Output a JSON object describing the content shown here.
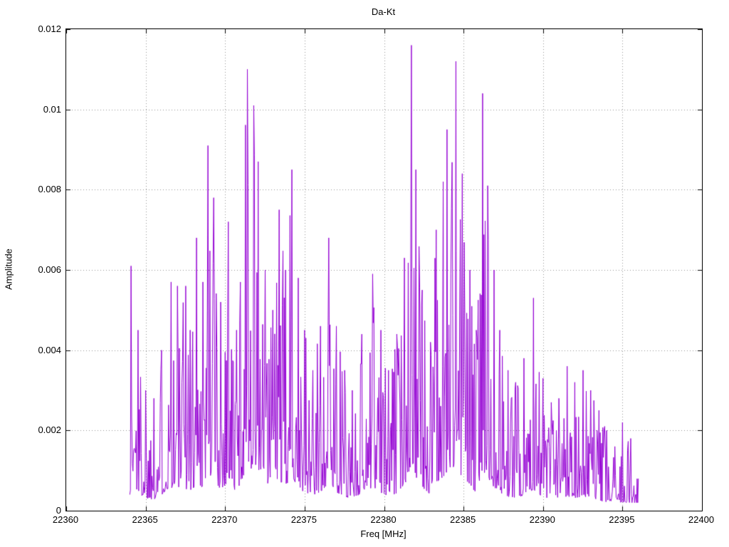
{
  "chart_data": {
    "type": "line",
    "title": "Da-Kt",
    "xlabel": "Freq [MHz]",
    "ylabel": "Amplitude",
    "xlim": [
      22360,
      22400
    ],
    "ylim": [
      0,
      0.012
    ],
    "grid": true,
    "legend": "none",
    "series_color": "#9400d3",
    "grid_color": "#909090",
    "xticks": [
      {
        "v": 22360,
        "label": "22360"
      },
      {
        "v": 22365,
        "label": "22365"
      },
      {
        "v": 22370,
        "label": "22370"
      },
      {
        "v": 22375,
        "label": "22375"
      },
      {
        "v": 22380,
        "label": "22380"
      },
      {
        "v": 22385,
        "label": "22385"
      },
      {
        "v": 22390,
        "label": "22390"
      },
      {
        "v": 22395,
        "label": "22395"
      },
      {
        "v": 22400,
        "label": "22400"
      }
    ],
    "yticks": [
      {
        "v": 0,
        "label": "0"
      },
      {
        "v": 0.002,
        "label": "0.002"
      },
      {
        "v": 0.004,
        "label": "0.004"
      },
      {
        "v": 0.006,
        "label": "0.006"
      },
      {
        "v": 0.008,
        "label": "0.008"
      },
      {
        "v": 0.01,
        "label": "0.01"
      },
      {
        "v": 0.012,
        "label": "0.012"
      }
    ],
    "x_start": 22364.0,
    "x_end": 22396.0,
    "points_per_mhz": 25,
    "noise_seed": 1337,
    "noise_floor": 0.0002,
    "envelope": [
      [
        22363.9,
        0.001
      ],
      [
        22364.1,
        0.0061
      ],
      [
        22364.5,
        0.0045
      ],
      [
        22365.0,
        0.003
      ],
      [
        22365.5,
        0.0028
      ],
      [
        22366.0,
        0.004
      ],
      [
        22366.6,
        0.0057
      ],
      [
        22367.0,
        0.0056
      ],
      [
        22367.5,
        0.0056
      ],
      [
        22367.8,
        0.0045
      ],
      [
        22368.2,
        0.0068
      ],
      [
        22368.6,
        0.0057
      ],
      [
        22368.9,
        0.0091
      ],
      [
        22369.3,
        0.0078
      ],
      [
        22369.7,
        0.0052
      ],
      [
        22370.2,
        0.0072
      ],
      [
        22370.7,
        0.0045
      ],
      [
        22371.4,
        0.011
      ],
      [
        22371.8,
        0.0101
      ],
      [
        22372.1,
        0.0087
      ],
      [
        22372.5,
        0.006
      ],
      [
        22373.0,
        0.005
      ],
      [
        22373.4,
        0.0075
      ],
      [
        22373.8,
        0.006
      ],
      [
        22374.2,
        0.0085
      ],
      [
        22374.6,
        0.0058
      ],
      [
        22375.0,
        0.0045
      ],
      [
        22375.5,
        0.0035
      ],
      [
        22376.0,
        0.0046
      ],
      [
        22376.5,
        0.0068
      ],
      [
        22377.0,
        0.0046
      ],
      [
        22377.5,
        0.0035
      ],
      [
        22378.0,
        0.003
      ],
      [
        22378.6,
        0.0044
      ],
      [
        22379.3,
        0.0059
      ],
      [
        22379.8,
        0.0045
      ],
      [
        22380.3,
        0.0035
      ],
      [
        22380.8,
        0.0044
      ],
      [
        22381.3,
        0.0063
      ],
      [
        22381.7,
        0.0116
      ],
      [
        22382.0,
        0.0085
      ],
      [
        22382.4,
        0.0055
      ],
      [
        22382.9,
        0.0042
      ],
      [
        22383.3,
        0.007
      ],
      [
        22383.7,
        0.0082
      ],
      [
        22383.95,
        0.0095
      ],
      [
        22384.5,
        0.0112
      ],
      [
        22384.9,
        0.0084
      ],
      [
        22385.4,
        0.006
      ],
      [
        22385.8,
        0.0045
      ],
      [
        22386.2,
        0.0104
      ],
      [
        22386.5,
        0.0081
      ],
      [
        22386.9,
        0.006
      ],
      [
        22387.3,
        0.0045
      ],
      [
        22387.8,
        0.0035
      ],
      [
        22388.3,
        0.0032
      ],
      [
        22388.8,
        0.0038
      ],
      [
        22389.4,
        0.0053
      ],
      [
        22390.0,
        0.0033
      ],
      [
        22390.5,
        0.0027
      ],
      [
        22391.0,
        0.0028
      ],
      [
        22391.5,
        0.0036
      ],
      [
        22392.0,
        0.0032
      ],
      [
        22392.5,
        0.0035
      ],
      [
        22393.0,
        0.003
      ],
      [
        22393.5,
        0.0025
      ],
      [
        22394.0,
        0.002
      ],
      [
        22394.5,
        0.0016
      ],
      [
        22395.0,
        0.0022
      ],
      [
        22395.5,
        0.0018
      ],
      [
        22396.0,
        0.0008
      ]
    ]
  }
}
